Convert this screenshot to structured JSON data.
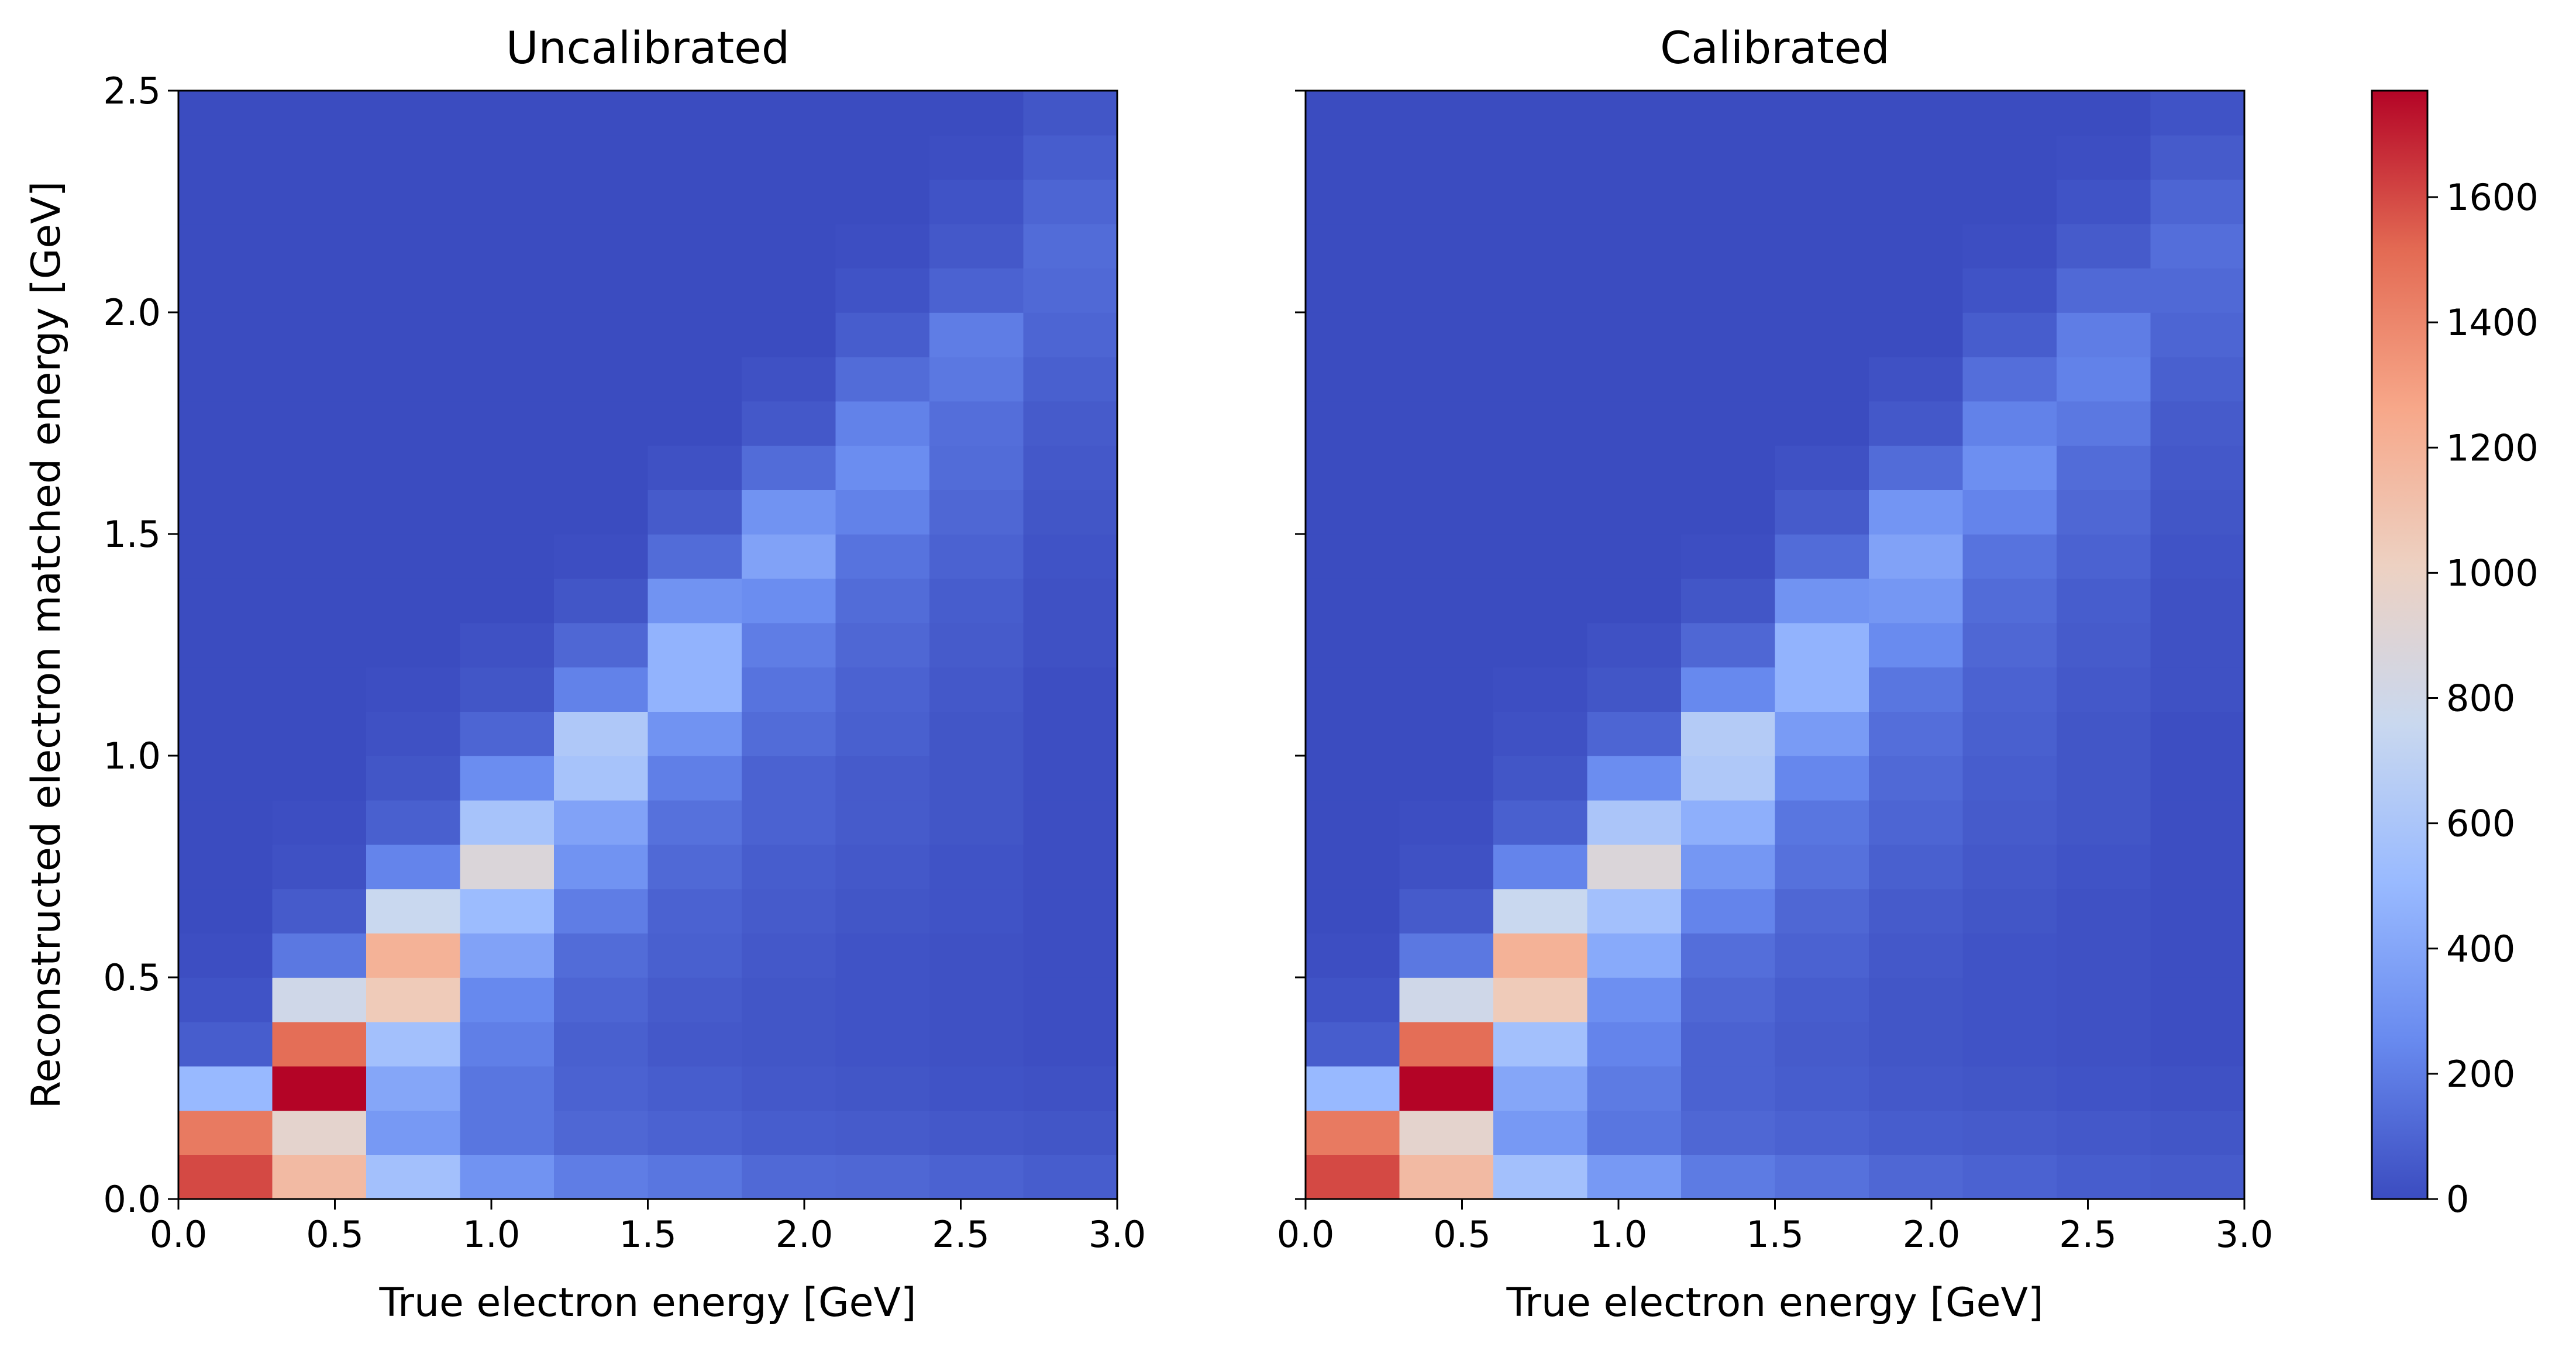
{
  "chart_data": [
    {
      "type": "heatmap",
      "title": "Uncalibrated",
      "xlabel": "True electron energy [GeV]",
      "ylabel": "Reconstructed electron matched energy [GeV]",
      "xlim": [
        0.0,
        3.0
      ],
      "ylim": [
        0.0,
        2.5
      ],
      "xticks": [
        "0.0",
        "0.5",
        "1.0",
        "1.5",
        "2.0",
        "2.5",
        "3.0"
      ],
      "yticks": [
        "0.0",
        "0.5",
        "1.0",
        "1.5",
        "2.0",
        "2.5"
      ],
      "x_bin_edges": [
        0.0,
        0.3,
        0.6,
        0.9,
        1.2,
        1.5,
        1.8,
        2.1,
        2.4,
        2.7,
        3.0
      ],
      "y_bin_edges": [
        0.0,
        0.1,
        0.2,
        0.3,
        0.4,
        0.5,
        0.6,
        0.7,
        0.8,
        0.9,
        1.0,
        1.1,
        1.2,
        1.3,
        1.4,
        1.5,
        1.6,
        1.7,
        1.8,
        1.9,
        2.0,
        2.1,
        2.2,
        2.3,
        2.4,
        2.5
      ],
      "grid": false,
      "values": [
        [
          1600,
          1150,
          560,
          300,
          200,
          170,
          120,
          110,
          90,
          70
        ],
        [
          1450,
          950,
          330,
          170,
          110,
          90,
          70,
          60,
          50,
          40
        ],
        [
          500,
          1780,
          400,
          170,
          90,
          70,
          50,
          40,
          30,
          20
        ],
        [
          70,
          1500,
          560,
          210,
          80,
          50,
          40,
          30,
          20,
          10
        ],
        [
          30,
          800,
          1050,
          250,
          100,
          60,
          40,
          30,
          20,
          10
        ],
        [
          10,
          180,
          1200,
          380,
          130,
          80,
          50,
          30,
          20,
          10
        ],
        [
          0,
          60,
          760,
          520,
          200,
          90,
          60,
          40,
          30,
          10
        ],
        [
          0,
          20,
          230,
          880,
          300,
          120,
          70,
          50,
          30,
          10
        ],
        [
          0,
          10,
          80,
          580,
          380,
          150,
          90,
          60,
          40,
          10
        ],
        [
          0,
          0,
          40,
          270,
          580,
          210,
          90,
          60,
          40,
          10
        ],
        [
          0,
          0,
          20,
          100,
          620,
          300,
          130,
          80,
          40,
          10
        ],
        [
          0,
          0,
          10,
          40,
          220,
          470,
          160,
          90,
          50,
          10
        ],
        [
          0,
          0,
          0,
          20,
          110,
          470,
          200,
          110,
          60,
          20
        ],
        [
          0,
          0,
          0,
          0,
          40,
          300,
          270,
          130,
          70,
          20
        ],
        [
          0,
          0,
          0,
          0,
          10,
          130,
          380,
          160,
          90,
          30
        ],
        [
          0,
          0,
          0,
          0,
          0,
          60,
          300,
          220,
          110,
          40
        ],
        [
          0,
          0,
          0,
          0,
          0,
          20,
          130,
          270,
          130,
          50
        ],
        [
          0,
          0,
          0,
          0,
          0,
          0,
          50,
          220,
          140,
          60
        ],
        [
          0,
          0,
          0,
          0,
          0,
          0,
          20,
          130,
          180,
          80
        ],
        [
          0,
          0,
          0,
          0,
          0,
          0,
          0,
          70,
          200,
          100
        ],
        [
          0,
          0,
          0,
          0,
          0,
          0,
          0,
          30,
          90,
          120
        ],
        [
          0,
          0,
          0,
          0,
          0,
          0,
          0,
          10,
          50,
          130
        ],
        [
          0,
          0,
          0,
          0,
          0,
          0,
          0,
          0,
          30,
          100
        ],
        [
          0,
          0,
          0,
          0,
          0,
          0,
          0,
          0,
          10,
          70
        ],
        [
          0,
          0,
          0,
          0,
          0,
          0,
          0,
          0,
          0,
          40
        ]
      ]
    },
    {
      "type": "heatmap",
      "title": "Calibrated",
      "xlabel": "True electron energy [GeV]",
      "ylabel": "",
      "xlim": [
        0.0,
        3.0
      ],
      "ylim": [
        0.0,
        2.5
      ],
      "xticks": [
        "0.0",
        "0.5",
        "1.0",
        "1.5",
        "2.0",
        "2.5",
        "3.0"
      ],
      "yticks": [],
      "x_bin_edges": [
        0.0,
        0.3,
        0.6,
        0.9,
        1.2,
        1.5,
        1.8,
        2.1,
        2.4,
        2.7,
        3.0
      ],
      "y_bin_edges": [
        0.0,
        0.1,
        0.2,
        0.3,
        0.4,
        0.5,
        0.6,
        0.7,
        0.8,
        0.9,
        1.0,
        1.1,
        1.2,
        1.3,
        1.4,
        1.5,
        1.6,
        1.7,
        1.8,
        1.9,
        2.0,
        2.1,
        2.2,
        2.3,
        2.4,
        2.5
      ],
      "grid": false,
      "values": [
        [
          1600,
          1150,
          560,
          330,
          190,
          150,
          110,
          90,
          70,
          60
        ],
        [
          1450,
          950,
          330,
          170,
          110,
          90,
          70,
          60,
          50,
          40
        ],
        [
          500,
          1780,
          400,
          190,
          90,
          70,
          50,
          40,
          30,
          20
        ],
        [
          70,
          1500,
          560,
          230,
          90,
          60,
          40,
          30,
          20,
          10
        ],
        [
          30,
          800,
          1050,
          280,
          110,
          70,
          40,
          30,
          20,
          10
        ],
        [
          10,
          180,
          1200,
          420,
          140,
          90,
          50,
          30,
          20,
          10
        ],
        [
          0,
          60,
          760,
          560,
          230,
          110,
          60,
          40,
          20,
          10
        ],
        [
          0,
          20,
          230,
          880,
          320,
          150,
          80,
          50,
          30,
          10
        ],
        [
          0,
          10,
          80,
          600,
          450,
          170,
          100,
          60,
          40,
          10
        ],
        [
          0,
          0,
          40,
          270,
          620,
          240,
          120,
          70,
          40,
          10
        ],
        [
          0,
          0,
          20,
          100,
          650,
          340,
          140,
          80,
          40,
          10
        ],
        [
          0,
          0,
          10,
          40,
          250,
          470,
          170,
          90,
          50,
          20
        ],
        [
          0,
          0,
          0,
          20,
          110,
          470,
          260,
          110,
          60,
          20
        ],
        [
          0,
          0,
          0,
          0,
          40,
          300,
          320,
          130,
          70,
          20
        ],
        [
          0,
          0,
          0,
          0,
          10,
          130,
          380,
          160,
          90,
          30
        ],
        [
          0,
          0,
          0,
          0,
          0,
          60,
          310,
          230,
          110,
          40
        ],
        [
          0,
          0,
          0,
          0,
          0,
          20,
          130,
          280,
          130,
          50
        ],
        [
          0,
          0,
          0,
          0,
          0,
          0,
          50,
          220,
          180,
          60
        ],
        [
          0,
          0,
          0,
          0,
          0,
          0,
          20,
          140,
          220,
          80
        ],
        [
          0,
          0,
          0,
          0,
          0,
          0,
          0,
          70,
          200,
          100
        ],
        [
          0,
          0,
          0,
          0,
          0,
          0,
          0,
          30,
          120,
          120
        ],
        [
          0,
          0,
          0,
          0,
          0,
          0,
          0,
          10,
          60,
          140
        ],
        [
          0,
          0,
          0,
          0,
          0,
          0,
          0,
          0,
          30,
          100
        ],
        [
          0,
          0,
          0,
          0,
          0,
          0,
          0,
          0,
          10,
          60
        ],
        [
          0,
          0,
          0,
          0,
          0,
          0,
          0,
          0,
          0,
          30
        ]
      ]
    }
  ],
  "colorbar": {
    "colormap": "coolwarm",
    "range": [
      0,
      1770
    ],
    "ticks": [
      "0",
      "200",
      "400",
      "600",
      "800",
      "1000",
      "1200",
      "1400",
      "1600"
    ],
    "stops": [
      "#3b4cc0",
      "#688aef",
      "#99baff",
      "#c9d8ef",
      "#edd1c2",
      "#f7a789",
      "#e36a53",
      "#b40426"
    ]
  }
}
